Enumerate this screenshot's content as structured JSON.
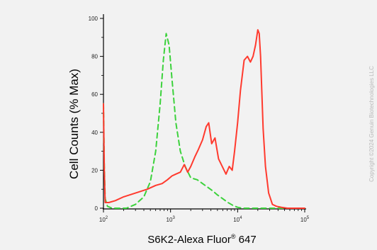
{
  "chart_data": {
    "type": "line",
    "title": "",
    "xlabel_main": "S6K2-Alexa Fluor",
    "xlabel_sup": "®",
    "xlabel_tail": " 647",
    "ylabel": "Cell Counts (% Max)",
    "x_scale": "log",
    "xlim": [
      100,
      100000
    ],
    "ylim": [
      0,
      100
    ],
    "yticks": [
      0,
      20,
      40,
      60,
      80,
      100
    ],
    "xticks": [
      {
        "base": "10",
        "exp": "2",
        "value": 100
      },
      {
        "base": "10",
        "exp": "3",
        "value": 1000
      },
      {
        "base": "10",
        "exp": "4",
        "value": 10000
      },
      {
        "base": "10",
        "exp": "5",
        "value": 100000
      }
    ],
    "grid": false,
    "legend": "none",
    "series": [
      {
        "color": "#3cd23c",
        "dash": "dashed",
        "x": [
          100,
          103,
          106,
          115,
          135,
          170,
          220,
          300,
          400,
          500,
          600,
          700,
          780,
          860,
          950,
          1050,
          1200,
          1400,
          1650,
          2000,
          2500,
          3000,
          3600,
          4300,
          5000,
          6000,
          7200,
          8500,
          10000,
          12000,
          20000,
          50000,
          100000
        ],
        "y": [
          55,
          22,
          5,
          1,
          0,
          0,
          0,
          2,
          6,
          14,
          30,
          55,
          78,
          92,
          86,
          68,
          45,
          30,
          22,
          16,
          15,
          13,
          11,
          9,
          7,
          5,
          3,
          1.5,
          0.5,
          0,
          0,
          0,
          0
        ]
      },
      {
        "color": "#ff3a2e",
        "dash": "solid",
        "x": [
          100,
          103,
          106,
          120,
          150,
          200,
          300,
          450,
          600,
          750,
          900,
          1050,
          1200,
          1400,
          1600,
          1800,
          2000,
          2300,
          2600,
          3000,
          3400,
          3700,
          4100,
          4600,
          5200,
          5900,
          6700,
          7500,
          8300,
          9000,
          10000,
          11000,
          12500,
          14000,
          15500,
          17000,
          18500,
          20000,
          21000,
          22000,
          23000,
          24000,
          26000,
          29000,
          33000,
          38000,
          45000,
          55000,
          70000,
          100000
        ],
        "y": [
          55,
          20,
          3,
          3,
          4,
          6,
          8,
          10,
          12,
          13,
          15,
          17,
          18,
          19,
          23,
          19,
          22,
          27,
          31,
          36,
          43,
          45,
          34,
          37,
          26,
          22,
          18,
          22,
          20,
          30,
          45,
          62,
          78,
          80,
          77,
          80,
          86,
          94,
          92,
          80,
          60,
          42,
          22,
          8,
          2,
          1,
          0.5,
          0,
          0,
          0
        ]
      }
    ]
  },
  "copyright": "Copyright ©2024 Genuin Biotechnologies LLC"
}
